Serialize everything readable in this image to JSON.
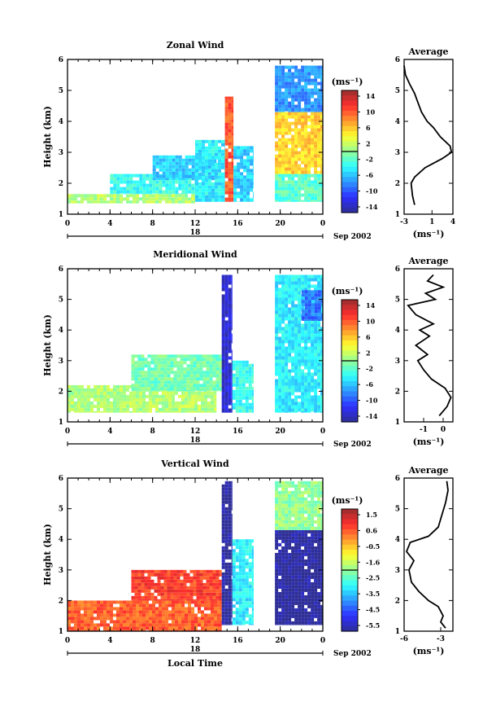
{
  "panels": [
    {
      "id": "zonal",
      "title": "Zonal Wind",
      "ylabel": "Height (km)",
      "y_ticks": [
        "1",
        "2",
        "3",
        "4",
        "5",
        "6"
      ],
      "x_ticks": [
        "0",
        "4",
        "8",
        "12",
        "16",
        "20",
        "0"
      ],
      "day_label": "18",
      "date_label": "Sep 2002",
      "xlabel": "",
      "colorbar": {
        "unit_label": "(ms⁻¹)",
        "ticks": [
          "14",
          "10",
          "6",
          "2",
          "-2",
          "-6",
          "-10",
          "-14"
        ],
        "range": [
          -14,
          14
        ]
      },
      "average": {
        "title": "Average",
        "xlabel": "(ms⁻¹)",
        "x_ticks": [
          "-3",
          "1",
          "4"
        ],
        "xlim": [
          -3,
          4
        ],
        "y_ticks": [
          "1",
          "2",
          "3",
          "4",
          "5",
          "6"
        ]
      }
    },
    {
      "id": "meridional",
      "title": "Meridional Wind",
      "ylabel": "Height (km)",
      "y_ticks": [
        "1",
        "2",
        "3",
        "4",
        "5",
        "6"
      ],
      "x_ticks": [
        "0",
        "4",
        "8",
        "12",
        "16",
        "20",
        "0"
      ],
      "day_label": "18",
      "date_label": "Sep 2002",
      "xlabel": "",
      "colorbar": {
        "unit_label": "(ms⁻¹)",
        "ticks": [
          "14",
          "10",
          "6",
          "2",
          "-2",
          "-6",
          "-10",
          "-14"
        ],
        "range": [
          -14,
          14
        ]
      },
      "average": {
        "title": "Average",
        "xlabel": "(ms⁻¹)",
        "x_ticks": [
          "-1",
          "0"
        ],
        "xlim": [
          -2,
          0.5
        ],
        "y_ticks": [
          "1",
          "2",
          "3",
          "4",
          "5",
          "6"
        ]
      }
    },
    {
      "id": "vertical",
      "title": "Vertical Wind",
      "ylabel": "Height (km)",
      "y_ticks": [
        "1",
        "2",
        "3",
        "4",
        "5",
        "6"
      ],
      "x_ticks": [
        "0",
        "4",
        "8",
        "12",
        "16",
        "20",
        "0"
      ],
      "day_label": "18",
      "date_label": "Sep 2002",
      "xlabel": "Local Time",
      "colorbar": {
        "unit_label": "(ms⁻¹)",
        "ticks": [
          "1.5",
          "0.6",
          "-0.5",
          "-1.6",
          "-2.5",
          "-3.5",
          "-4.5",
          "-5.5"
        ],
        "range": [
          -5.5,
          1.5
        ]
      },
      "average": {
        "title": "Average",
        "xlabel": "(ms⁻¹)",
        "x_ticks": [
          "-6",
          "-3"
        ],
        "xlim": [
          -6,
          -2
        ],
        "y_ticks": [
          "1",
          "2",
          "3",
          "4",
          "5",
          "6"
        ]
      }
    }
  ],
  "chart_data": [
    {
      "type": "heatmap",
      "title": "Zonal Wind",
      "ylabel": "Height (km)",
      "xlim": [
        0,
        24
      ],
      "ylim": [
        1,
        6
      ],
      "colorbar_range": [
        -14,
        14
      ],
      "colormap": "jet",
      "zones": [
        {
          "x": [
            0,
            12
          ],
          "y": [
            1.35,
            1.65
          ],
          "value": 1
        },
        {
          "x": [
            4,
            12
          ],
          "y": [
            1.65,
            2.3
          ],
          "value": -3
        },
        {
          "x": [
            8,
            14
          ],
          "y": [
            2.1,
            2.9
          ],
          "value": -5
        },
        {
          "x": [
            12,
            14.8
          ],
          "y": [
            1.4,
            3.4
          ],
          "value": -4
        },
        {
          "x": [
            14.8,
            15.6
          ],
          "y": [
            1.4,
            4.8
          ],
          "value": 9
        },
        {
          "x": [
            15.6,
            17.5
          ],
          "y": [
            1.4,
            3.2
          ],
          "value": -5
        },
        {
          "x": [
            19.5,
            24
          ],
          "y": [
            1.4,
            2.3
          ],
          "value": -2
        },
        {
          "x": [
            19.5,
            24
          ],
          "y": [
            2.3,
            4.3
          ],
          "value": 5
        },
        {
          "x": [
            19.5,
            24
          ],
          "y": [
            4.3,
            5.8
          ],
          "value": -7
        }
      ],
      "average_profile": {
        "height": [
          1.3,
          1.6,
          2.0,
          2.2,
          2.5,
          2.8,
          3.0,
          3.2,
          3.5,
          3.8,
          4.0,
          4.3,
          4.6,
          4.9,
          5.2,
          5.5,
          5.8
        ],
        "value": [
          -1.5,
          -1.8,
          -2.0,
          -1.5,
          0.0,
          2.5,
          3.8,
          3.6,
          2.2,
          1.2,
          0.3,
          -0.5,
          -1.0,
          -1.5,
          -2.2,
          -2.8,
          -3.0
        ]
      }
    },
    {
      "type": "heatmap",
      "title": "Meridional Wind",
      "ylabel": "Height (km)",
      "xlim": [
        0,
        24
      ],
      "ylim": [
        1,
        6
      ],
      "colorbar_range": [
        -14,
        14
      ],
      "colormap": "jet",
      "zones": [
        {
          "x": [
            0,
            14
          ],
          "y": [
            1.3,
            2.2
          ],
          "value": 1
        },
        {
          "x": [
            6,
            14.5
          ],
          "y": [
            2.0,
            3.2
          ],
          "value": -1
        },
        {
          "x": [
            14.5,
            15.5
          ],
          "y": [
            1.3,
            5.8
          ],
          "value": -12
        },
        {
          "x": [
            15.5,
            17.5
          ],
          "y": [
            1.3,
            3.0
          ],
          "value": -3
        },
        {
          "x": [
            19.5,
            24
          ],
          "y": [
            1.3,
            5.8
          ],
          "value": -4
        },
        {
          "x": [
            22,
            24
          ],
          "y": [
            4.3,
            5.3
          ],
          "value": -8
        }
      ],
      "average_profile": {
        "height": [
          1.2,
          1.5,
          1.8,
          2.1,
          2.4,
          2.7,
          3.0,
          3.2,
          3.5,
          3.8,
          4.0,
          4.2,
          4.5,
          4.8,
          5.0,
          5.2,
          5.4,
          5.6,
          5.8
        ],
        "value": [
          -0.2,
          0.2,
          0.4,
          0.1,
          -0.6,
          -1.0,
          -1.3,
          -0.8,
          -1.4,
          -0.7,
          -1.2,
          -0.5,
          -1.4,
          -1.8,
          -0.4,
          -0.9,
          0.0,
          -0.8,
          -0.5
        ]
      }
    },
    {
      "type": "heatmap",
      "title": "Vertical Wind",
      "ylabel": "Height (km)",
      "xlabel": "Local Time",
      "xlim": [
        0,
        24
      ],
      "ylim": [
        1,
        6
      ],
      "colorbar_range": [
        -5.5,
        1.5
      ],
      "colormap": "jet",
      "zones": [
        {
          "x": [
            0,
            14.5
          ],
          "y": [
            1.0,
            2.0
          ],
          "value": 0.2
        },
        {
          "x": [
            6,
            14.5
          ],
          "y": [
            2.0,
            3.0
          ],
          "value": 0.5
        },
        {
          "x": [
            14.5,
            15.5
          ],
          "y": [
            1.2,
            5.9
          ],
          "value": -5.5
        },
        {
          "x": [
            15.5,
            17.5
          ],
          "y": [
            1.2,
            4.0
          ],
          "value": -3.0
        },
        {
          "x": [
            19.5,
            24
          ],
          "y": [
            1.2,
            4.3
          ],
          "value": -5.5
        },
        {
          "x": [
            19.5,
            24
          ],
          "y": [
            4.3,
            5.9
          ],
          "value": -2.0
        }
      ],
      "average_profile": {
        "height": [
          1.1,
          1.3,
          1.5,
          1.8,
          2.0,
          2.3,
          2.6,
          3.0,
          3.3,
          3.6,
          3.9,
          4.1,
          4.4,
          4.8,
          5.2,
          5.6,
          5.9
        ],
        "value": [
          -2.6,
          -3.0,
          -2.8,
          -3.2,
          -4.0,
          -4.8,
          -5.4,
          -5.6,
          -5.2,
          -5.8,
          -5.5,
          -4.0,
          -3.2,
          -2.9,
          -2.6,
          -2.4,
          -2.5
        ]
      }
    }
  ]
}
